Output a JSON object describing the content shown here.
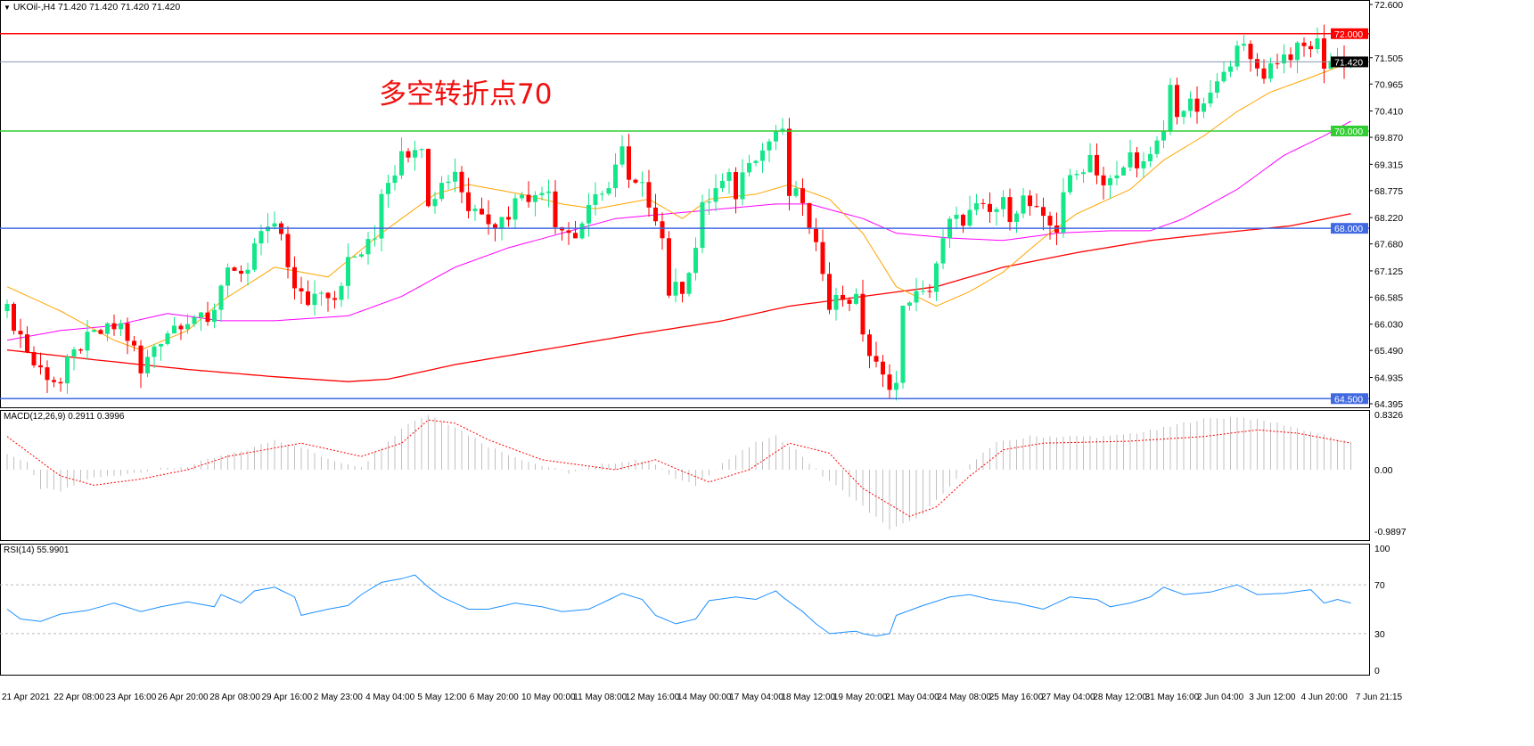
{
  "header": {
    "symbol_info": "UKOil-,H4  71.420 71.420 71.420 71.420",
    "dropdown_icon": "triangle-down-icon"
  },
  "annotation": "多空转折点70",
  "macd_label": "MACD(12,26,9) 0.2911 0.3996",
  "rsi_label": "RSI(14) 55.9901",
  "colors": {
    "bull": "#14e68a",
    "bear": "#ff0000",
    "ma_fast": "#ffa500",
    "ma_mid": "#ff00ff",
    "ma_slow": "#ff0000",
    "rsi": "#1e90ff",
    "macd_hist": "#c0c0c0",
    "macd_signal": "#ff0000"
  },
  "levels": [
    {
      "price": 72.0,
      "label": "72.000",
      "color": "#ff0000"
    },
    {
      "price": 70.0,
      "label": "70.000",
      "color": "#32cd32"
    },
    {
      "price": 68.0,
      "label": "68.000",
      "color": "#4169e1"
    },
    {
      "price": 64.5,
      "label": "64.500",
      "color": "#4169e1"
    }
  ],
  "current_price": {
    "price": 71.42,
    "label": "71.420"
  },
  "chart_data": {
    "type": "candlestick",
    "price_axis": {
      "range": [
        64.395,
        72.6
      ],
      "ticks": [
        "72.600",
        "71.505",
        "70.965",
        "70.410",
        "69.870",
        "69.315",
        "68.775",
        "68.220",
        "67.680",
        "67.125",
        "66.585",
        "66.030",
        "65.490",
        "64.935",
        "64.395"
      ],
      "tick_values": [
        72.6,
        71.505,
        70.965,
        70.41,
        69.87,
        69.315,
        68.775,
        68.22,
        67.68,
        67.125,
        66.585,
        66.03,
        65.49,
        64.935,
        64.395
      ]
    },
    "time_labels": [
      "21 Apr 2021",
      "22 Apr 08:00",
      "23 Apr 16:00",
      "26 Apr 20:00",
      "28 Apr 08:00",
      "29 Apr 16:00",
      "2 May 23:00",
      "4 May 04:00",
      "5 May 12:00",
      "6 May 20:00",
      "10 May 00:00",
      "11 May 08:00",
      "12 May 16:00",
      "14 May 00:00",
      "17 May 04:00",
      "18 May 12:00",
      "19 May 20:00",
      "21 May 04:00",
      "24 May 08:00",
      "25 May 16:00",
      "27 May 04:00",
      "28 May 12:00",
      "31 May 16:00",
      "2 Jun 04:00",
      "3 Jun 12:00",
      "4 Jun 20:00",
      "7 Jun 21:15"
    ],
    "bars": 202,
    "close_path": [
      [
        0,
        66.3
      ],
      [
        2,
        65.8
      ],
      [
        4,
        65.2
      ],
      [
        6,
        65.0
      ],
      [
        8,
        64.8
      ],
      [
        9,
        65.2
      ],
      [
        11,
        65.6
      ],
      [
        13,
        65.8
      ],
      [
        15,
        65.9
      ],
      [
        17,
        66.0
      ],
      [
        19,
        65.5
      ],
      [
        20,
        65.0
      ],
      [
        22,
        65.6
      ],
      [
        24,
        65.9
      ],
      [
        26,
        66.1
      ],
      [
        28,
        66.2
      ],
      [
        30,
        66.0
      ],
      [
        31,
        66.4
      ],
      [
        33,
        67.3
      ],
      [
        35,
        66.9
      ],
      [
        36,
        67.0
      ],
      [
        37,
        67.7
      ],
      [
        39,
        68.0
      ],
      [
        41,
        67.9
      ],
      [
        43,
        66.7
      ],
      [
        45,
        66.5
      ],
      [
        47,
        66.8
      ],
      [
        49,
        66.6
      ],
      [
        51,
        67.3
      ],
      [
        53,
        67.5
      ],
      [
        55,
        67.8
      ],
      [
        56,
        68.8
      ],
      [
        58,
        69.2
      ],
      [
        59,
        69.7
      ],
      [
        61,
        69.5
      ],
      [
        62,
        69.8
      ],
      [
        63,
        68.6
      ],
      [
        65,
        68.9
      ],
      [
        67,
        69.2
      ],
      [
        69,
        68.4
      ],
      [
        71,
        68.4
      ],
      [
        73,
        68.1
      ],
      [
        75,
        68.3
      ],
      [
        77,
        68.8
      ],
      [
        79,
        68.6
      ],
      [
        81,
        68.9
      ],
      [
        82,
        68.1
      ],
      [
        83,
        68.1
      ],
      [
        85,
        67.8
      ],
      [
        87,
        68.5
      ],
      [
        89,
        68.6
      ],
      [
        91,
        69.3
      ],
      [
        92,
        69.6
      ],
      [
        93,
        68.9
      ],
      [
        95,
        68.8
      ],
      [
        97,
        68.3
      ],
      [
        98,
        67.8
      ],
      [
        99,
        66.7
      ],
      [
        101,
        66.8
      ],
      [
        103,
        67.6
      ],
      [
        104,
        68.4
      ],
      [
        106,
        68.8
      ],
      [
        108,
        69.0
      ],
      [
        109,
        68.7
      ],
      [
        111,
        69.5
      ],
      [
        113,
        69.6
      ],
      [
        115,
        70.0
      ],
      [
        116,
        69.9
      ],
      [
        117,
        68.7
      ],
      [
        119,
        68.6
      ],
      [
        120,
        67.9
      ],
      [
        122,
        67.2
      ],
      [
        123,
        66.5
      ],
      [
        125,
        66.6
      ],
      [
        127,
        66.5
      ],
      [
        128,
        65.9
      ],
      [
        129,
        65.4
      ],
      [
        131,
        64.9
      ],
      [
        133,
        64.8
      ],
      [
        134,
        66.3
      ],
      [
        135,
        66.6
      ],
      [
        137,
        66.6
      ],
      [
        138,
        66.8
      ],
      [
        139,
        67.3
      ],
      [
        141,
        68.1
      ],
      [
        143,
        68.2
      ],
      [
        145,
        68.4
      ],
      [
        147,
        68.3
      ],
      [
        149,
        68.5
      ],
      [
        150,
        68.3
      ],
      [
        152,
        68.6
      ],
      [
        154,
        68.3
      ],
      [
        155,
        68.1
      ],
      [
        157,
        68.0
      ],
      [
        158,
        68.8
      ],
      [
        160,
        69.1
      ],
      [
        162,
        69.5
      ],
      [
        164,
        68.9
      ],
      [
        166,
        69.0
      ],
      [
        168,
        69.5
      ],
      [
        170,
        69.3
      ],
      [
        171,
        69.4
      ],
      [
        173,
        70.0
      ],
      [
        174,
        70.9
      ],
      [
        175,
        70.4
      ],
      [
        177,
        70.5
      ],
      [
        179,
        70.4
      ],
      [
        180,
        70.8
      ],
      [
        182,
        71.1
      ],
      [
        184,
        71.9
      ],
      [
        186,
        71.4
      ],
      [
        188,
        71.2
      ],
      [
        190,
        71.5
      ],
      [
        192,
        71.6
      ],
      [
        194,
        71.7
      ],
      [
        196,
        71.8
      ],
      [
        197,
        71.4
      ],
      [
        199,
        71.5
      ],
      [
        200,
        71.45
      ],
      [
        201,
        71.42
      ]
    ],
    "ma_fast": [
      [
        0,
        66.8
      ],
      [
        8,
        66.3
      ],
      [
        16,
        65.7
      ],
      [
        20,
        65.5
      ],
      [
        27,
        65.9
      ],
      [
        32,
        66.5
      ],
      [
        40,
        67.2
      ],
      [
        48,
        67.0
      ],
      [
        56,
        67.9
      ],
      [
        64,
        68.7
      ],
      [
        69,
        68.9
      ],
      [
        77,
        68.7
      ],
      [
        83,
        68.5
      ],
      [
        88,
        68.4
      ],
      [
        96,
        68.6
      ],
      [
        101,
        68.2
      ],
      [
        105,
        68.6
      ],
      [
        112,
        68.7
      ],
      [
        117,
        68.9
      ],
      [
        123,
        68.6
      ],
      [
        128,
        67.9
      ],
      [
        133,
        66.8
      ],
      [
        139,
        66.4
      ],
      [
        144,
        66.7
      ],
      [
        149,
        67.1
      ],
      [
        155,
        67.8
      ],
      [
        160,
        68.3
      ],
      [
        168,
        68.8
      ],
      [
        173,
        69.4
      ],
      [
        179,
        69.9
      ],
      [
        184,
        70.4
      ],
      [
        189,
        70.8
      ],
      [
        195,
        71.1
      ],
      [
        201,
        71.42
      ]
    ],
    "ma_mid": [
      [
        0,
        65.7
      ],
      [
        8,
        65.9
      ],
      [
        16,
        66.0
      ],
      [
        24,
        66.25
      ],
      [
        32,
        66.1
      ],
      [
        40,
        66.1
      ],
      [
        51,
        66.2
      ],
      [
        59,
        66.6
      ],
      [
        67,
        67.2
      ],
      [
        75,
        67.6
      ],
      [
        83,
        67.9
      ],
      [
        91,
        68.2
      ],
      [
        99,
        68.3
      ],
      [
        107,
        68.4
      ],
      [
        115,
        68.5
      ],
      [
        120,
        68.5
      ],
      [
        128,
        68.2
      ],
      [
        133,
        67.9
      ],
      [
        141,
        67.8
      ],
      [
        149,
        67.75
      ],
      [
        157,
        67.9
      ],
      [
        165,
        67.95
      ],
      [
        171,
        67.95
      ],
      [
        176,
        68.2
      ],
      [
        184,
        68.8
      ],
      [
        191,
        69.5
      ],
      [
        197,
        69.9
      ],
      [
        201,
        70.2
      ]
    ],
    "ma_slow": [
      [
        0,
        65.5
      ],
      [
        13,
        65.3
      ],
      [
        27,
        65.1
      ],
      [
        40,
        64.95
      ],
      [
        51,
        64.85
      ],
      [
        57,
        64.9
      ],
      [
        67,
        65.2
      ],
      [
        80,
        65.5
      ],
      [
        93,
        65.8
      ],
      [
        107,
        66.1
      ],
      [
        117,
        66.4
      ],
      [
        128,
        66.6
      ],
      [
        139,
        66.8
      ],
      [
        149,
        67.2
      ],
      [
        160,
        67.5
      ],
      [
        171,
        67.75
      ],
      [
        181,
        67.9
      ],
      [
        192,
        68.05
      ],
      [
        201,
        68.3
      ]
    ],
    "macd": {
      "range": [
        -0.9897,
        0.8326
      ],
      "ticks": [
        "0.8326",
        "0.00",
        "-0.9897"
      ],
      "tick_values": [
        0.8326,
        0,
        -0.9897
      ],
      "histogram": [
        [
          0,
          0.25
        ],
        [
          3,
          0.1
        ],
        [
          5,
          -0.3
        ],
        [
          8,
          -0.35
        ],
        [
          12,
          -0.15
        ],
        [
          17,
          -0.08
        ],
        [
          22,
          0.0
        ],
        [
          27,
          0.05
        ],
        [
          30,
          0.15
        ],
        [
          36,
          0.3
        ],
        [
          40,
          0.45
        ],
        [
          44,
          0.35
        ],
        [
          48,
          0.15
        ],
        [
          53,
          0.05
        ],
        [
          56,
          0.35
        ],
        [
          60,
          0.7
        ],
        [
          63,
          0.83
        ],
        [
          67,
          0.65
        ],
        [
          72,
          0.35
        ],
        [
          78,
          0.12
        ],
        [
          84,
          -0.05
        ],
        [
          90,
          0.1
        ],
        [
          96,
          0.15
        ],
        [
          100,
          -0.15
        ],
        [
          103,
          -0.25
        ],
        [
          107,
          0.1
        ],
        [
          112,
          0.4
        ],
        [
          115,
          0.5
        ],
        [
          118,
          0.3
        ],
        [
          122,
          -0.1
        ],
        [
          127,
          -0.5
        ],
        [
          132,
          -0.95
        ],
        [
          136,
          -0.8
        ],
        [
          140,
          -0.4
        ],
        [
          144,
          0.1
        ],
        [
          148,
          0.4
        ],
        [
          153,
          0.5
        ],
        [
          165,
          0.5
        ],
        [
          172,
          0.6
        ],
        [
          178,
          0.75
        ],
        [
          184,
          0.8
        ],
        [
          190,
          0.7
        ],
        [
          196,
          0.55
        ],
        [
          201,
          0.4
        ]
      ],
      "signal": [
        [
          0,
          0.5
        ],
        [
          8,
          -0.1
        ],
        [
          13,
          -0.25
        ],
        [
          20,
          -0.15
        ],
        [
          27,
          0.0
        ],
        [
          33,
          0.2
        ],
        [
          44,
          0.4
        ],
        [
          53,
          0.2
        ],
        [
          59,
          0.4
        ],
        [
          63,
          0.75
        ],
        [
          67,
          0.7
        ],
        [
          72,
          0.45
        ],
        [
          80,
          0.15
        ],
        [
          91,
          0.0
        ],
        [
          97,
          0.15
        ],
        [
          105,
          -0.2
        ],
        [
          111,
          0.0
        ],
        [
          117,
          0.4
        ],
        [
          123,
          0.25
        ],
        [
          128,
          -0.3
        ],
        [
          135,
          -0.75
        ],
        [
          139,
          -0.6
        ],
        [
          144,
          -0.1
        ],
        [
          149,
          0.3
        ],
        [
          155,
          0.4
        ],
        [
          168,
          0.43
        ],
        [
          179,
          0.5
        ],
        [
          187,
          0.6
        ],
        [
          193,
          0.55
        ],
        [
          201,
          0.4
        ]
      ]
    },
    "rsi": {
      "range": [
        0,
        100
      ],
      "ticks": [
        "100",
        "70",
        "30",
        "0"
      ],
      "tick_values": [
        100,
        70,
        30,
        0
      ],
      "levels": [
        70,
        30
      ],
      "values": [
        [
          0,
          50
        ],
        [
          2,
          42
        ],
        [
          5,
          40
        ],
        [
          8,
          46
        ],
        [
          12,
          49
        ],
        [
          16,
          55
        ],
        [
          20,
          48
        ],
        [
          23,
          52
        ],
        [
          27,
          56
        ],
        [
          31,
          52
        ],
        [
          32,
          62
        ],
        [
          35,
          55
        ],
        [
          37,
          65
        ],
        [
          40,
          68
        ],
        [
          43,
          60
        ],
        [
          44,
          45
        ],
        [
          48,
          50
        ],
        [
          51,
          53
        ],
        [
          53,
          62
        ],
        [
          56,
          72
        ],
        [
          59,
          75
        ],
        [
          61,
          78
        ],
        [
          63,
          68
        ],
        [
          65,
          60
        ],
        [
          69,
          50
        ],
        [
          72,
          50
        ],
        [
          76,
          55
        ],
        [
          80,
          52
        ],
        [
          83,
          48
        ],
        [
          87,
          50
        ],
        [
          89,
          55
        ],
        [
          92,
          63
        ],
        [
          95,
          58
        ],
        [
          97,
          45
        ],
        [
          100,
          38
        ],
        [
          103,
          42
        ],
        [
          105,
          57
        ],
        [
          109,
          60
        ],
        [
          112,
          58
        ],
        [
          115,
          65
        ],
        [
          116,
          60
        ],
        [
          119,
          48
        ],
        [
          121,
          38
        ],
        [
          123,
          30
        ],
        [
          127,
          32
        ],
        [
          128,
          30
        ],
        [
          130,
          28
        ],
        [
          132,
          30
        ],
        [
          133,
          45
        ],
        [
          137,
          53
        ],
        [
          141,
          60
        ],
        [
          144,
          62
        ],
        [
          147,
          58
        ],
        [
          151,
          55
        ],
        [
          155,
          50
        ],
        [
          159,
          60
        ],
        [
          163,
          58
        ],
        [
          165,
          52
        ],
        [
          168,
          55
        ],
        [
          171,
          60
        ],
        [
          173,
          68
        ],
        [
          176,
          62
        ],
        [
          180,
          64
        ],
        [
          184,
          70
        ],
        [
          187,
          62
        ],
        [
          191,
          63
        ],
        [
          195,
          66
        ],
        [
          197,
          55
        ],
        [
          199,
          58
        ],
        [
          201,
          55
        ]
      ]
    }
  }
}
